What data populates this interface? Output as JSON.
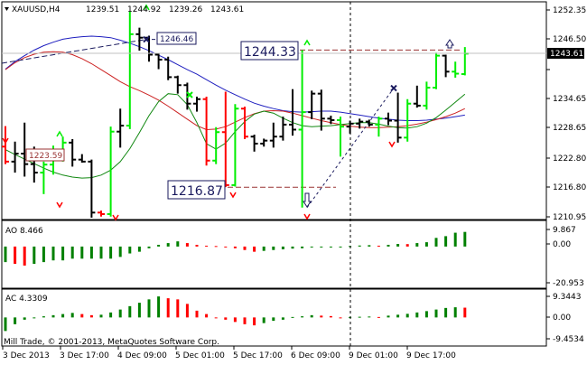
{
  "window": {
    "symbol_timeframe": "XAUUSD,H4",
    "ohlc_values": [
      "1239.51",
      "1244.92",
      "1239.26",
      "1243.61"
    ]
  },
  "main_chart": {
    "price_axis_labels": [
      "1252.35",
      "1246.50",
      "1240.65",
      "1234.65",
      "1228.65",
      "1222.80",
      "1216.80",
      "1210.95"
    ],
    "current_price_label": "1243.61",
    "annotation_labels": {
      "high_1": "1246.46",
      "high_2": "1244.33",
      "low_1": "1223.59",
      "low_2": "1216.87"
    }
  },
  "ao_panel": {
    "label": "AO 8.466",
    "axis_labels": [
      "9.867",
      "0.00",
      "-20.953"
    ]
  },
  "ac_panel": {
    "label": "AC 4.3309",
    "axis_labels": [
      "9.3443",
      "0.00",
      "-9.4534"
    ]
  },
  "footer": {
    "watermark": "Mill Trade, © 2001-2013, MetaQuotes Software Corp."
  },
  "time_axis_labels": [
    "3 Dec 2013",
    "3 Dec 17:00",
    "4 Dec 09:00",
    "5 Dec 01:00",
    "5 Dec 17:00",
    "6 Dec 09:00",
    "9 Dec 01:00",
    "9 Dec 17:00"
  ],
  "colors": {
    "bullish_bar": "#00ee00",
    "bearish_bar": "#ff0000",
    "neutral_bar": "#000000",
    "ma_blue": "#1f1fbf",
    "ma_red": "#cc2222",
    "ma_green": "#118811",
    "ao_up": "#008000",
    "ao_down": "#ff0000",
    "trendline": "#1a1a5e",
    "hline": "#993333"
  },
  "chart_data": {
    "type": "candlestick",
    "bars": [
      {
        "o": 1225.0,
        "h": 1229.1,
        "l": 1221.5,
        "c": 1222.0,
        "t": "b"
      },
      {
        "o": 1222.0,
        "h": 1226.0,
        "l": 1219.8,
        "c": 1223.6,
        "t": "n"
      },
      {
        "o": 1223.6,
        "h": 1229.8,
        "l": 1219.0,
        "c": 1221.5,
        "t": "n"
      },
      {
        "o": 1221.5,
        "h": 1225.0,
        "l": 1217.8,
        "c": 1219.8,
        "t": "n"
      },
      {
        "o": 1219.8,
        "h": 1222.0,
        "l": 1215.5,
        "c": 1221.4,
        "t": "u"
      },
      {
        "o": 1221.4,
        "h": 1225.2,
        "l": 1219.4,
        "c": 1223.0,
        "t": "u"
      },
      {
        "o": 1223.0,
        "h": 1227.0,
        "l": 1222.0,
        "c": 1225.8,
        "t": "u"
      },
      {
        "o": 1225.8,
        "h": 1226.5,
        "l": 1221.0,
        "c": 1222.4,
        "t": "n"
      },
      {
        "o": 1222.4,
        "h": 1223.5,
        "l": 1221.8,
        "c": 1222.0,
        "t": "n"
      },
      {
        "o": 1222.0,
        "h": 1222.4,
        "l": 1210.8,
        "c": 1211.8,
        "t": "n"
      },
      {
        "o": 1211.8,
        "h": 1212.2,
        "l": 1211.0,
        "c": 1211.5,
        "t": "b"
      },
      {
        "o": 1211.5,
        "h": 1229.0,
        "l": 1211.0,
        "c": 1228.0,
        "t": "u"
      },
      {
        "o": 1228.0,
        "h": 1232.6,
        "l": 1224.8,
        "c": 1229.2,
        "t": "n"
      },
      {
        "o": 1229.2,
        "h": 1252.0,
        "l": 1228.5,
        "c": 1247.5,
        "t": "u"
      },
      {
        "o": 1247.5,
        "h": 1248.8,
        "l": 1244.2,
        "c": 1246.8,
        "t": "n"
      },
      {
        "o": 1246.8,
        "h": 1247.2,
        "l": 1242.0,
        "c": 1243.4,
        "t": "n"
      },
      {
        "o": 1243.4,
        "h": 1243.6,
        "l": 1240.5,
        "c": 1242.4,
        "t": "n"
      },
      {
        "o": 1242.4,
        "h": 1243.0,
        "l": 1238.3,
        "c": 1238.9,
        "t": "n"
      },
      {
        "o": 1238.9,
        "h": 1239.2,
        "l": 1235.6,
        "c": 1237.3,
        "t": "n"
      },
      {
        "o": 1237.3,
        "h": 1237.8,
        "l": 1232.4,
        "c": 1233.6,
        "t": "n"
      },
      {
        "o": 1233.6,
        "h": 1235.0,
        "l": 1232.0,
        "c": 1234.5,
        "t": "n"
      },
      {
        "o": 1234.5,
        "h": 1235.0,
        "l": 1221.2,
        "c": 1222.2,
        "t": "b"
      },
      {
        "o": 1222.2,
        "h": 1228.9,
        "l": 1221.5,
        "c": 1227.9,
        "t": "u"
      },
      {
        "o": 1227.9,
        "h": 1236.0,
        "l": 1216.9,
        "c": 1217.3,
        "t": "b"
      },
      {
        "o": 1217.3,
        "h": 1233.5,
        "l": 1217.0,
        "c": 1232.6,
        "t": "u"
      },
      {
        "o": 1232.6,
        "h": 1233.0,
        "l": 1226.5,
        "c": 1227.0,
        "t": "b"
      },
      {
        "o": 1227.0,
        "h": 1227.4,
        "l": 1224.0,
        "c": 1225.6,
        "t": "n"
      },
      {
        "o": 1225.6,
        "h": 1226.6,
        "l": 1225.0,
        "c": 1226.2,
        "t": "n"
      },
      {
        "o": 1226.2,
        "h": 1229.8,
        "l": 1224.8,
        "c": 1227.0,
        "t": "n"
      },
      {
        "o": 1227.0,
        "h": 1231.0,
        "l": 1226.2,
        "c": 1229.4,
        "t": "n"
      },
      {
        "o": 1229.4,
        "h": 1236.5,
        "l": 1227.2,
        "c": 1228.4,
        "t": "n"
      },
      {
        "o": 1228.4,
        "h": 1244.3,
        "l": 1212.8,
        "c": 1231.9,
        "t": "u"
      },
      {
        "o": 1231.9,
        "h": 1236.2,
        "l": 1230.5,
        "c": 1235.6,
        "t": "n"
      },
      {
        "o": 1235.6,
        "h": 1236.4,
        "l": 1228.2,
        "c": 1230.6,
        "t": "n"
      },
      {
        "o": 1230.6,
        "h": 1231.2,
        "l": 1229.5,
        "c": 1230.3,
        "t": "n"
      },
      {
        "o": 1230.3,
        "h": 1231.0,
        "l": 1223.0,
        "c": 1229.0,
        "t": "u"
      },
      {
        "o": 1229.0,
        "h": 1230.2,
        "l": 1227.6,
        "c": 1229.6,
        "t": "n"
      },
      {
        "o": 1229.6,
        "h": 1230.6,
        "l": 1228.6,
        "c": 1230.0,
        "t": "n"
      },
      {
        "o": 1230.0,
        "h": 1230.4,
        "l": 1229.0,
        "c": 1229.4,
        "t": "n"
      },
      {
        "o": 1229.4,
        "h": 1231.0,
        "l": 1227.0,
        "c": 1230.6,
        "t": "u"
      },
      {
        "o": 1230.6,
        "h": 1231.8,
        "l": 1229.3,
        "c": 1230.2,
        "t": "n"
      },
      {
        "o": 1230.2,
        "h": 1235.8,
        "l": 1225.8,
        "c": 1226.8,
        "t": "n"
      },
      {
        "o": 1226.8,
        "h": 1234.5,
        "l": 1226.0,
        "c": 1233.6,
        "t": "u"
      },
      {
        "o": 1233.6,
        "h": 1237.2,
        "l": 1232.8,
        "c": 1233.2,
        "t": "n"
      },
      {
        "o": 1233.2,
        "h": 1238.0,
        "l": 1232.4,
        "c": 1236.8,
        "t": "u"
      },
      {
        "o": 1236.8,
        "h": 1243.8,
        "l": 1236.5,
        "c": 1243.2,
        "t": "u"
      },
      {
        "o": 1243.2,
        "h": 1243.4,
        "l": 1238.9,
        "c": 1240.0,
        "t": "n"
      },
      {
        "o": 1240.0,
        "h": 1242.0,
        "l": 1238.8,
        "c": 1239.6,
        "t": "u"
      },
      {
        "o": 1239.51,
        "h": 1244.92,
        "l": 1239.26,
        "c": 1243.61,
        "t": "u"
      }
    ],
    "ma_blue": [
      1240.5,
      1242.0,
      1243.2,
      1244.3,
      1245.2,
      1245.9,
      1246.5,
      1246.8,
      1247.0,
      1247.1,
      1247.0,
      1246.8,
      1246.3,
      1245.7,
      1245.0,
      1244.2,
      1243.3,
      1242.4,
      1241.4,
      1240.4,
      1239.5,
      1238.4,
      1237.3,
      1236.3,
      1235.4,
      1234.5,
      1233.7,
      1233.1,
      1232.6,
      1232.2,
      1232.0,
      1231.9,
      1232.0,
      1232.1,
      1232.1,
      1231.9,
      1231.6,
      1231.3,
      1231.0,
      1230.7,
      1230.5,
      1230.3,
      1230.2,
      1230.2,
      1230.3,
      1230.5,
      1230.7,
      1231.0,
      1231.3
    ],
    "ma_red": [
      1240.4,
      1241.8,
      1242.8,
      1243.5,
      1243.9,
      1244.0,
      1243.9,
      1243.4,
      1242.6,
      1241.6,
      1240.4,
      1239.2,
      1238.0,
      1237.0,
      1236.2,
      1235.3,
      1234.3,
      1233.1,
      1231.8,
      1230.5,
      1229.2,
      1228.4,
      1228.5,
      1229.0,
      1229.9,
      1230.8,
      1231.6,
      1232.1,
      1232.2,
      1232.1,
      1231.7,
      1231.2,
      1230.7,
      1230.2,
      1229.8,
      1229.4,
      1229.1,
      1228.9,
      1228.8,
      1228.8,
      1228.9,
      1229.0,
      1229.2,
      1229.5,
      1229.9,
      1230.4,
      1231.0,
      1231.7,
      1232.6
    ],
    "ma_green": [
      1224.4,
      1223.4,
      1222.5,
      1221.6,
      1220.7,
      1219.9,
      1219.3,
      1218.9,
      1218.7,
      1218.8,
      1219.3,
      1220.3,
      1222.0,
      1224.6,
      1227.8,
      1231.2,
      1234.0,
      1235.6,
      1235.4,
      1233.4,
      1229.8,
      1225.6,
      1224.5,
      1225.7,
      1228.0,
      1230.0,
      1231.5,
      1232.1,
      1231.7,
      1230.7,
      1229.8,
      1229.2,
      1229.0,
      1229.1,
      1229.2,
      1229.4,
      1229.6,
      1229.8,
      1229.8,
      1229.5,
      1229.1,
      1228.8,
      1228.7,
      1229.0,
      1229.7,
      1230.8,
      1232.3,
      1233.9,
      1235.5
    ],
    "ao_values": [
      -9,
      -10,
      -11,
      -10,
      -9,
      -8,
      -8,
      -7,
      -7,
      -7,
      -7,
      -7,
      -6,
      -4,
      -3,
      -1,
      1,
      2,
      3,
      2,
      1,
      0.5,
      0.3,
      -0.5,
      -1,
      -2,
      -3,
      -2.5,
      -2,
      -1.6,
      -1.2,
      -1,
      -0.5,
      -0.4,
      -0.2,
      0,
      0.3,
      0.6,
      0.8,
      0.5,
      1,
      1.5,
      1.4,
      2,
      2.5,
      5,
      6,
      8,
      8.466
    ],
    "ac_values": [
      -6,
      -3,
      -1,
      0,
      0.5,
      1,
      1.5,
      2.0,
      1.5,
      1,
      1.2,
      2.2,
      3.5,
      5,
      6.5,
      8,
      9.3,
      8.5,
      8,
      6,
      3,
      1.5,
      0,
      -1,
      -2,
      -3,
      -3.5,
      -2.5,
      -1.5,
      -1,
      0.2,
      0.5,
      1.0,
      0.8,
      0.6,
      0,
      0.2,
      0.3,
      0.4,
      0.2,
      0.8,
      1.2,
      1.6,
      2.2,
      2.8,
      3.5,
      4.2,
      4.5,
      4.3309
    ],
    "price_range": [
      1210.95,
      1252.35
    ],
    "ao_range": [
      -20.953,
      9.867
    ],
    "ac_range": [
      -9.4534,
      9.3443
    ]
  }
}
